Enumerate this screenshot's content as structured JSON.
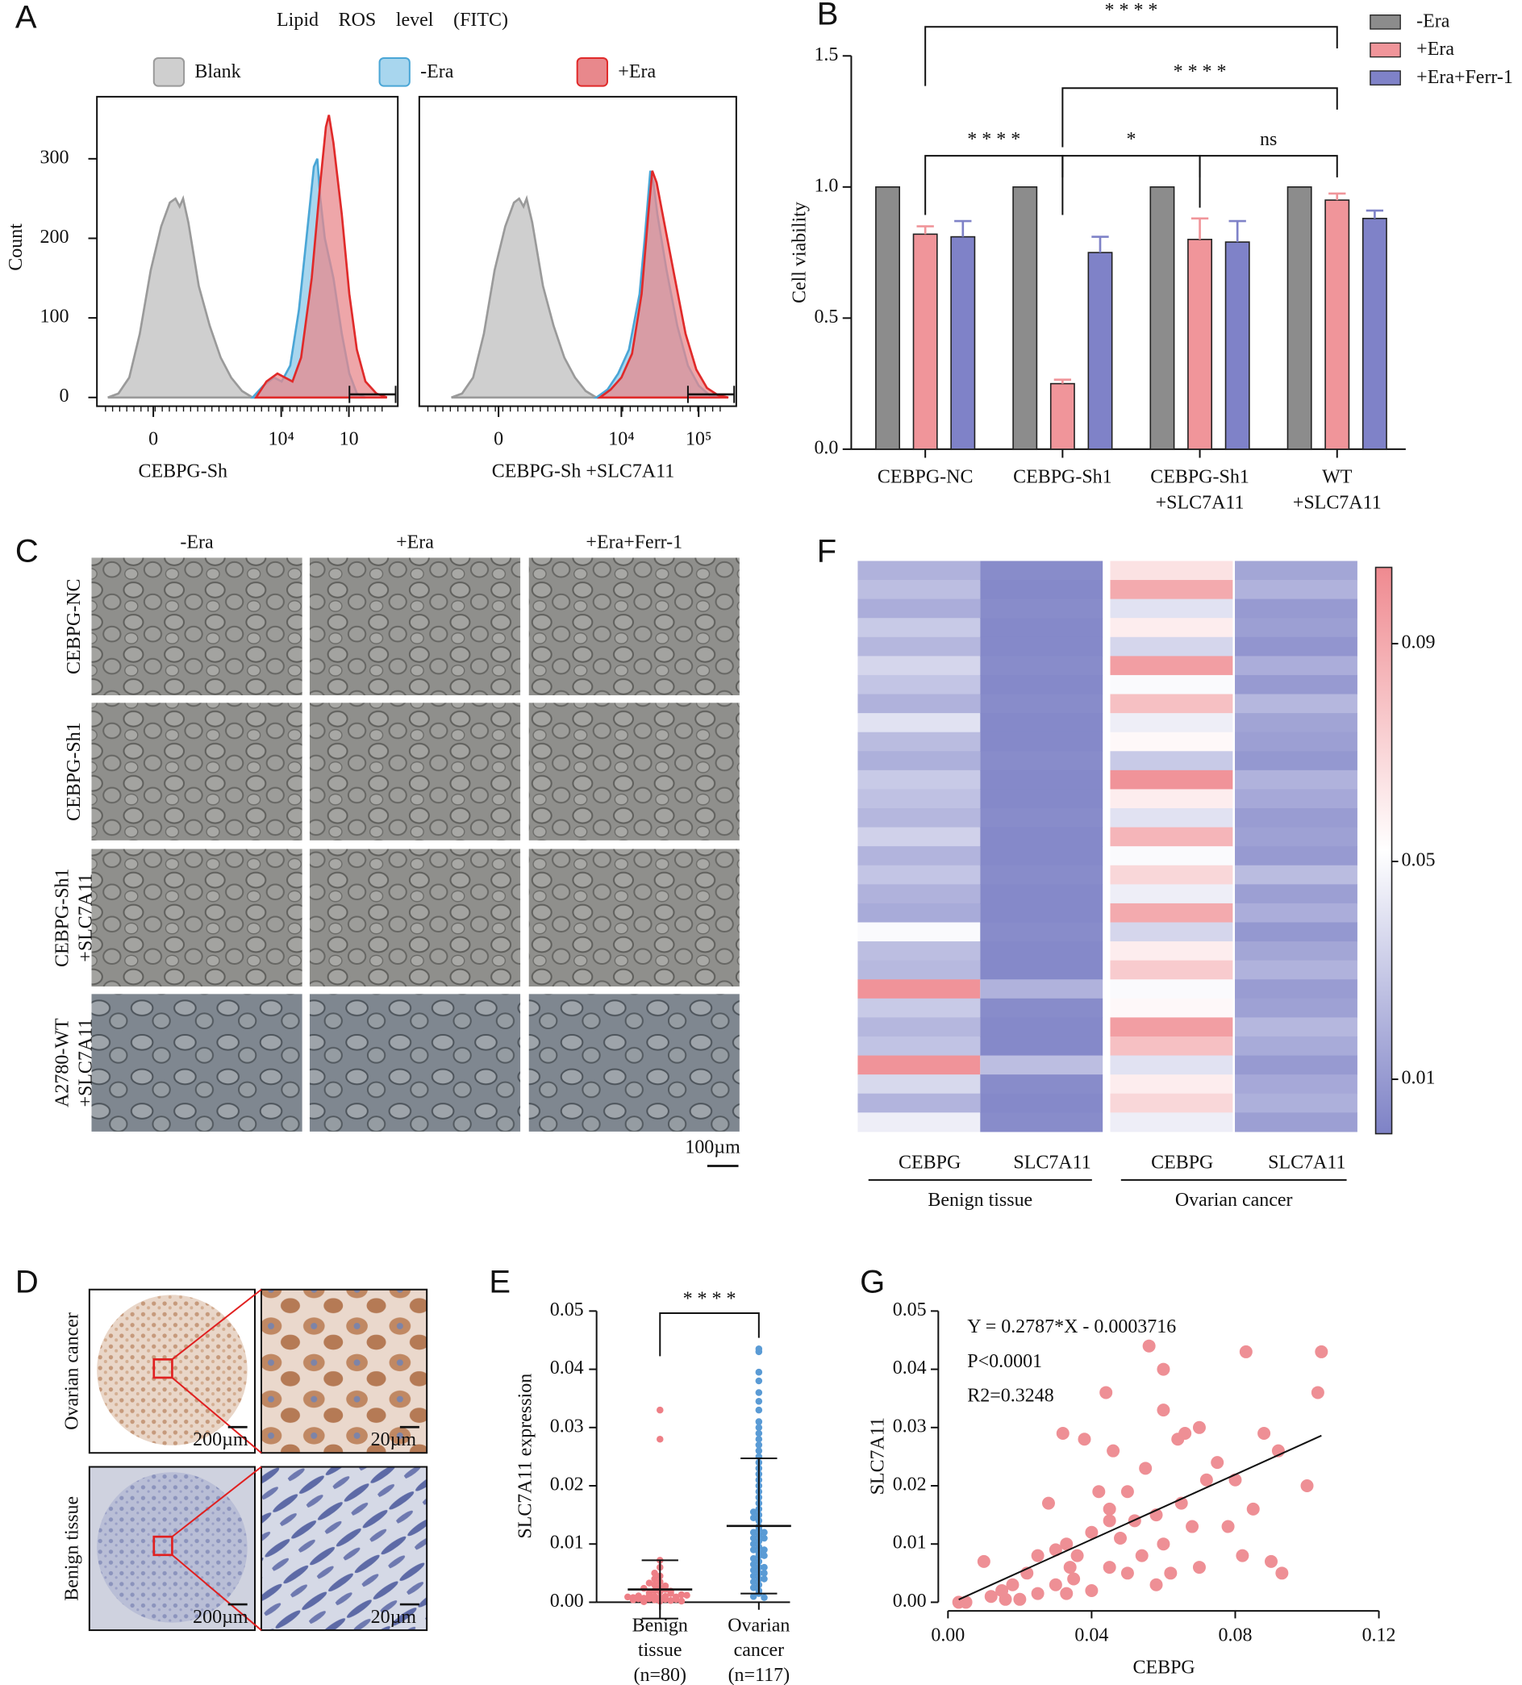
{
  "panel_labels": {
    "a": "A",
    "b": "B",
    "c": "C",
    "d": "D",
    "e": "E",
    "f": "F",
    "g": "G"
  },
  "chart_data": [
    {
      "type": "area",
      "title": "Lipid ROS level (FITC)",
      "x_label": "CEBPG-Sh",
      "y_label": "Count",
      "xlim": [
        -1.5,
        6.5
      ],
      "xticks": [
        0,
        {
          "value": 3.4,
          "label": "10⁴"
        },
        {
          "value": 5.2,
          "label": "10"
        }
      ],
      "ylim": [
        -11,
        378
      ],
      "yticks": [
        0,
        100,
        200,
        300
      ],
      "series": [
        {
          "name": "Blank",
          "color": "#cfcfcf",
          "line_color": "#9a9a9a",
          "x": [
            -1.21,
            -0.93,
            -0.64,
            -0.36,
            -0.07,
            0.21,
            0.44,
            0.59,
            0.7,
            0.79,
            0.93,
            1.21,
            1.5,
            1.79,
            2.07,
            2.36,
            2.64
          ],
          "values": [
            0,
            5,
            25,
            80,
            160,
            215,
            245,
            250,
            240,
            250,
            220,
            140,
            90,
            50,
            25,
            8,
            0
          ]
        },
        {
          "name": "-Era",
          "color": "#a8d6ee",
          "line_color": "#4aa6d6",
          "x": [
            2.64,
            2.93,
            3.21,
            3.41,
            3.64,
            3.87,
            4.07,
            4.27,
            4.36,
            4.44,
            4.56,
            4.79,
            5.01,
            5.21,
            5.41,
            5.64
          ],
          "values": [
            0,
            15,
            25,
            20,
            40,
            110,
            200,
            290,
            300,
            250,
            200,
            150,
            80,
            30,
            5,
            0
          ]
        },
        {
          "name": "+Era",
          "color": "#e8888c",
          "line_color": "#e02a2a",
          "x": [
            2.73,
            3.01,
            3.3,
            3.5,
            3.7,
            3.93,
            4.21,
            4.44,
            4.59,
            4.67,
            4.79,
            5.01,
            5.21,
            5.41,
            5.64,
            5.93,
            6.21
          ],
          "values": [
            0,
            20,
            30,
            25,
            20,
            50,
            150,
            270,
            340,
            355,
            320,
            230,
            130,
            60,
            20,
            5,
            0
          ]
        }
      ]
    },
    {
      "type": "area",
      "x_label": "CEBPG-Sh +SLC7A11",
      "xlim": [
        -2,
        6
      ],
      "xticks": [
        0,
        {
          "value": 3.1,
          "label": "10⁴"
        },
        {
          "value": 5.05,
          "label": "10⁵"
        }
      ],
      "ylim": [
        -11,
        378
      ],
      "series": [
        {
          "color": "#cfcfcf",
          "line_color": "#9a9a9a",
          "x": [
            -1.19,
            -0.92,
            -0.64,
            -0.37,
            -0.1,
            0.17,
            0.39,
            0.52,
            0.63,
            0.71,
            0.85,
            1.12,
            1.39,
            1.66,
            1.93,
            2.2,
            2.47
          ],
          "values": [
            0,
            5,
            25,
            80,
            160,
            215,
            245,
            250,
            240,
            250,
            220,
            140,
            90,
            50,
            25,
            8,
            0
          ]
        },
        {
          "color": "#a8d6ee",
          "line_color": "#4aa6d6",
          "x": [
            2.47,
            2.75,
            3.02,
            3.29,
            3.56,
            3.69,
            3.83,
            3.91,
            4.01,
            4.24,
            4.51,
            4.78,
            5.05,
            5.32,
            5.59
          ],
          "values": [
            0,
            10,
            30,
            60,
            130,
            200,
            285,
            270,
            230,
            160,
            90,
            40,
            15,
            3,
            0
          ]
        },
        {
          "color": "#e8888c",
          "line_color": "#e02a2a",
          "x": [
            2.56,
            2.83,
            3.1,
            3.37,
            3.61,
            3.78,
            3.88,
            3.99,
            4.18,
            4.45,
            4.72,
            4.99,
            5.26,
            5.53,
            5.8
          ],
          "values": [
            0,
            10,
            25,
            55,
            130,
            230,
            285,
            270,
            220,
            150,
            80,
            35,
            12,
            3,
            0
          ]
        }
      ]
    },
    {
      "type": "bar",
      "y_label": "Cell viability",
      "categories": [
        [
          "CEBPG-NC"
        ],
        [
          "CEBPG-Sh1"
        ],
        [
          "CEBPG-Sh1",
          "+SLC7A11"
        ],
        [
          "WT",
          "+SLC7A11"
        ]
      ],
      "ylim": [
        0,
        1.5
      ],
      "yticks": [
        {
          "value": 0,
          "label": "0.0"
        },
        {
          "value": 0.5,
          "label": "0.5"
        },
        {
          "value": 1,
          "label": "1.0"
        },
        {
          "value": 1.5,
          "label": "1.5"
        }
      ],
      "series": [
        {
          "name": "-Era",
          "color": "#8c8c8c",
          "values": [
            1,
            1,
            1,
            1
          ]
        },
        {
          "name": "+Era",
          "color": "#f0959a",
          "values": [
            0.82,
            0.25,
            0.8,
            0.95
          ],
          "errors": [
            0.03,
            0.015,
            0.08,
            0.025
          ]
        },
        {
          "name": "+Era+Ferr-1",
          "color": "#7f82c8",
          "values": [
            0.81,
            0.75,
            0.79,
            0.88
          ],
          "errors": [
            0.06,
            0.06,
            0.08,
            0.03
          ]
        }
      ],
      "annotations": [
        "* * * *",
        "* * * *",
        "* * * *",
        "*",
        "ns"
      ]
    },
    {
      "type": "heatmap",
      "columns": [
        "CEBPG",
        "SLC7A11",
        "CEBPG",
        "SLC7A11"
      ],
      "groups": [
        "Benign tissue",
        "Ovarian cancer"
      ],
      "clim": [
        0,
        0.104
      ],
      "cticks": [
        0.01,
        0.05,
        0.09
      ],
      "values": [
        [
          0.02,
          0.025,
          0.018,
          0.03,
          0.022,
          0.035,
          0.028,
          0.02,
          0.04,
          0.024,
          0.019,
          0.03,
          0.026,
          0.022,
          0.033,
          0.021,
          0.028,
          0.02,
          0.017,
          0.05,
          0.025,
          0.023,
          0.1,
          0.03,
          0.022,
          0.027,
          0.1,
          0.036,
          0.021,
          0.045
        ],
        [
          0.004,
          0.003,
          0.004,
          0.003,
          0.003,
          0.004,
          0.003,
          0.004,
          0.003,
          0.003,
          0.004,
          0.003,
          0.003,
          0.004,
          0.003,
          0.003,
          0.004,
          0.003,
          0.003,
          0.004,
          0.003,
          0.003,
          0.02,
          0.004,
          0.003,
          0.003,
          0.025,
          0.004,
          0.003,
          0.004
        ],
        [
          0.065,
          0.09,
          0.04,
          0.06,
          0.035,
          0.095,
          0.05,
          0.08,
          0.045,
          0.055,
          0.03,
          0.1,
          0.06,
          0.04,
          0.085,
          0.05,
          0.07,
          0.045,
          0.09,
          0.035,
          0.06,
          0.075,
          0.05,
          0.055,
          0.095,
          0.08,
          0.04,
          0.06,
          0.07,
          0.045
        ],
        [
          0.015,
          0.02,
          0.01,
          0.012,
          0.008,
          0.018,
          0.01,
          0.022,
          0.014,
          0.012,
          0.009,
          0.02,
          0.016,
          0.011,
          0.013,
          0.01,
          0.024,
          0.012,
          0.018,
          0.009,
          0.015,
          0.02,
          0.011,
          0.013,
          0.022,
          0.017,
          0.01,
          0.016,
          0.019,
          0.012
        ]
      ]
    },
    {
      "type": "strip",
      "y_label": "SLC7A11 expression",
      "ylim": [
        0,
        0.05
      ],
      "yticks": [
        {
          "value": 0,
          "label": "0.00"
        },
        {
          "value": 0.01,
          "label": "0.01"
        },
        {
          "value": 0.02,
          "label": "0.02"
        },
        {
          "value": 0.03,
          "label": "0.03"
        },
        {
          "value": 0.04,
          "label": "0.04"
        },
        {
          "value": 0.05,
          "label": "0.05"
        }
      ],
      "categories": [
        [
          "Benign",
          "tissue",
          "(n=80)"
        ],
        [
          "Ovarian",
          "cancer",
          "(n=117)"
        ]
      ],
      "annotation": "* * * *",
      "series": [
        {
          "color": "#ee7f86",
          "mean": 0.0022,
          "sd": 0.005,
          "values": [
            0.0002,
            0.0004,
            0.0005,
            0.0006,
            0.0008,
            0.001,
            0.001,
            0.0012,
            0.0003,
            0.0001,
            0.0015,
            0.0018,
            0.002,
            0.0022,
            0.0005,
            0.0007,
            0.0009,
            0.0011,
            0.0025,
            0.003,
            0.0035,
            0.004,
            0.0045,
            0.005,
            0.006,
            0.0072,
            0.0028,
            0.0016,
            0.0013,
            0.0006,
            0.0002,
            0.0004,
            0.0008,
            0.0012,
            0.0019,
            0.0024,
            0.0033,
            0.028,
            0.033,
            0.0009
          ]
        },
        {
          "color": "#5a9bd5",
          "mean": 0.0131,
          "sd": 0.0116,
          "values": [
            0.0435,
            0.043,
            0.0395,
            0.038,
            0.036,
            0.0345,
            0.033,
            0.031,
            0.03,
            0.029,
            0.028,
            0.027,
            0.026,
            0.025,
            0.024,
            0.023,
            0.022,
            0.021,
            0.02,
            0.019,
            0.018,
            0.017,
            0.016,
            0.0155,
            0.015,
            0.0145,
            0.014,
            0.013,
            0.0125,
            0.012,
            0.0115,
            0.011,
            0.0105,
            0.01,
            0.0095,
            0.009,
            0.0085,
            0.008,
            0.0075,
            0.007,
            0.0065,
            0.006,
            0.0055,
            0.005,
            0.0045,
            0.004,
            0.0035,
            0.003,
            0.0025,
            0.002,
            0.0015,
            0.001,
            0.0008,
            0.012,
            0.011,
            0.009,
            0.008,
            0.006,
            0.005,
            0.004
          ]
        }
      ]
    },
    {
      "type": "scatter",
      "x_label": "CEBPG",
      "y_label": "SLC7A11",
      "color": "#ee8f95",
      "xlim": [
        0,
        0.12
      ],
      "ylim": [
        0,
        0.05
      ],
      "xticks": [
        {
          "value": 0,
          "label": "0.00"
        },
        {
          "value": 0.04,
          "label": "0.04"
        },
        {
          "value": 0.08,
          "label": "0.08"
        },
        {
          "value": 0.12,
          "label": "0.12"
        }
      ],
      "yticks": [
        {
          "value": 0,
          "label": "0.00"
        },
        {
          "value": 0.01,
          "label": "0.01"
        },
        {
          "value": 0.02,
          "label": "0.02"
        },
        {
          "value": 0.03,
          "label": "0.03"
        },
        {
          "value": 0.04,
          "label": "0.04"
        },
        {
          "value": 0.05,
          "label": "0.05"
        }
      ],
      "annotations": [
        "Y = 0.2787*X - 0.0003716",
        "P<0.0001",
        "R2=0.3248"
      ],
      "fit": {
        "slope": 0.2787,
        "intercept": -0.0003716
      },
      "x": [
        0.003,
        0.005,
        0.01,
        0.012,
        0.015,
        0.016,
        0.018,
        0.02,
        0.022,
        0.025,
        0.025,
        0.028,
        0.03,
        0.03,
        0.032,
        0.033,
        0.034,
        0.035,
        0.036,
        0.038,
        0.04,
        0.04,
        0.042,
        0.044,
        0.045,
        0.045,
        0.046,
        0.048,
        0.05,
        0.05,
        0.052,
        0.054,
        0.055,
        0.056,
        0.058,
        0.058,
        0.06,
        0.06,
        0.062,
        0.064,
        0.065,
        0.066,
        0.068,
        0.07,
        0.07,
        0.072,
        0.075,
        0.078,
        0.08,
        0.082,
        0.083,
        0.085,
        0.088,
        0.09,
        0.092,
        0.093,
        0.1,
        0.103,
        0.104,
        0.033,
        0.045,
        0.06
      ],
      "values": [
        0,
        0,
        0.007,
        0.001,
        0.002,
        0.0005,
        0.003,
        0.0005,
        0.005,
        0.008,
        0.0015,
        0.017,
        0.009,
        0.003,
        0.029,
        0.01,
        0.006,
        0.004,
        0.008,
        0.028,
        0.012,
        0.002,
        0.019,
        0.036,
        0.014,
        0.006,
        0.026,
        0.011,
        0.019,
        0.005,
        0.014,
        0.008,
        0.023,
        0.044,
        0.003,
        0.015,
        0.04,
        0.01,
        0.005,
        0.028,
        0.017,
        0.029,
        0.013,
        0.03,
        0.006,
        0.021,
        0.024,
        0.013,
        0.021,
        0.008,
        0.043,
        0.016,
        0.029,
        0.007,
        0.026,
        0.005,
        0.02,
        0.036,
        0.043,
        0.0015,
        0.016,
        0.033
      ]
    }
  ],
  "panel_c": {
    "columns": [
      "-Era",
      "+Era",
      "+Era+Ferr-1"
    ],
    "rows": [
      [
        "CEBPG-NC"
      ],
      [
        "CEBPG-Sh1"
      ],
      [
        "CEBPG-Sh1",
        "+SLC7A11"
      ],
      [
        "A2780-WT",
        "+SLC7A11"
      ]
    ],
    "scale_bar": "100µm"
  },
  "panel_d": {
    "rows": [
      "Ovarian cancer",
      "Benign tissue"
    ],
    "scale_bars": [
      "200µm",
      "20µm"
    ]
  }
}
